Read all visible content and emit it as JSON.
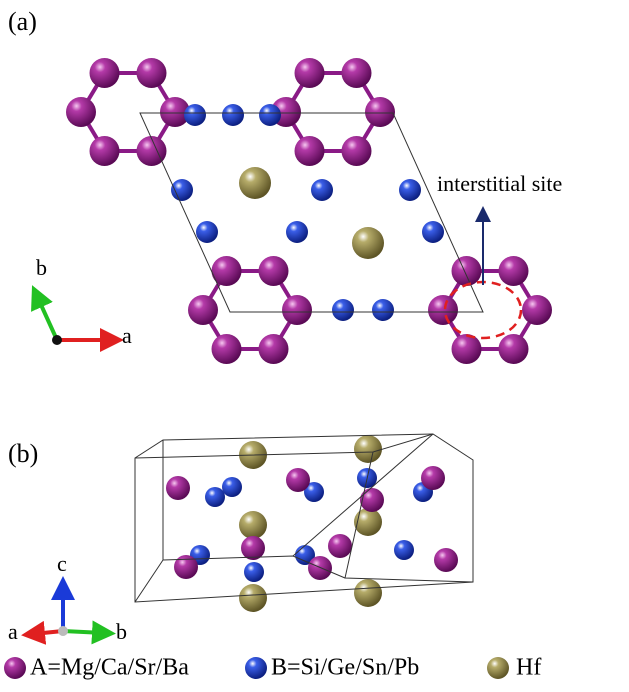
{
  "panel_a": {
    "label": "(a)",
    "annotation": "interstitial site",
    "axes": {
      "b": "b",
      "a": "a"
    }
  },
  "panel_b": {
    "label": "(b)",
    "axes": {
      "c": "c",
      "a": "a",
      "b": "b"
    }
  },
  "legend": [
    "A=Mg/Ca/Sr/Ba",
    "B=Si/Ge/Sn/Pb",
    "Hf"
  ]
}
